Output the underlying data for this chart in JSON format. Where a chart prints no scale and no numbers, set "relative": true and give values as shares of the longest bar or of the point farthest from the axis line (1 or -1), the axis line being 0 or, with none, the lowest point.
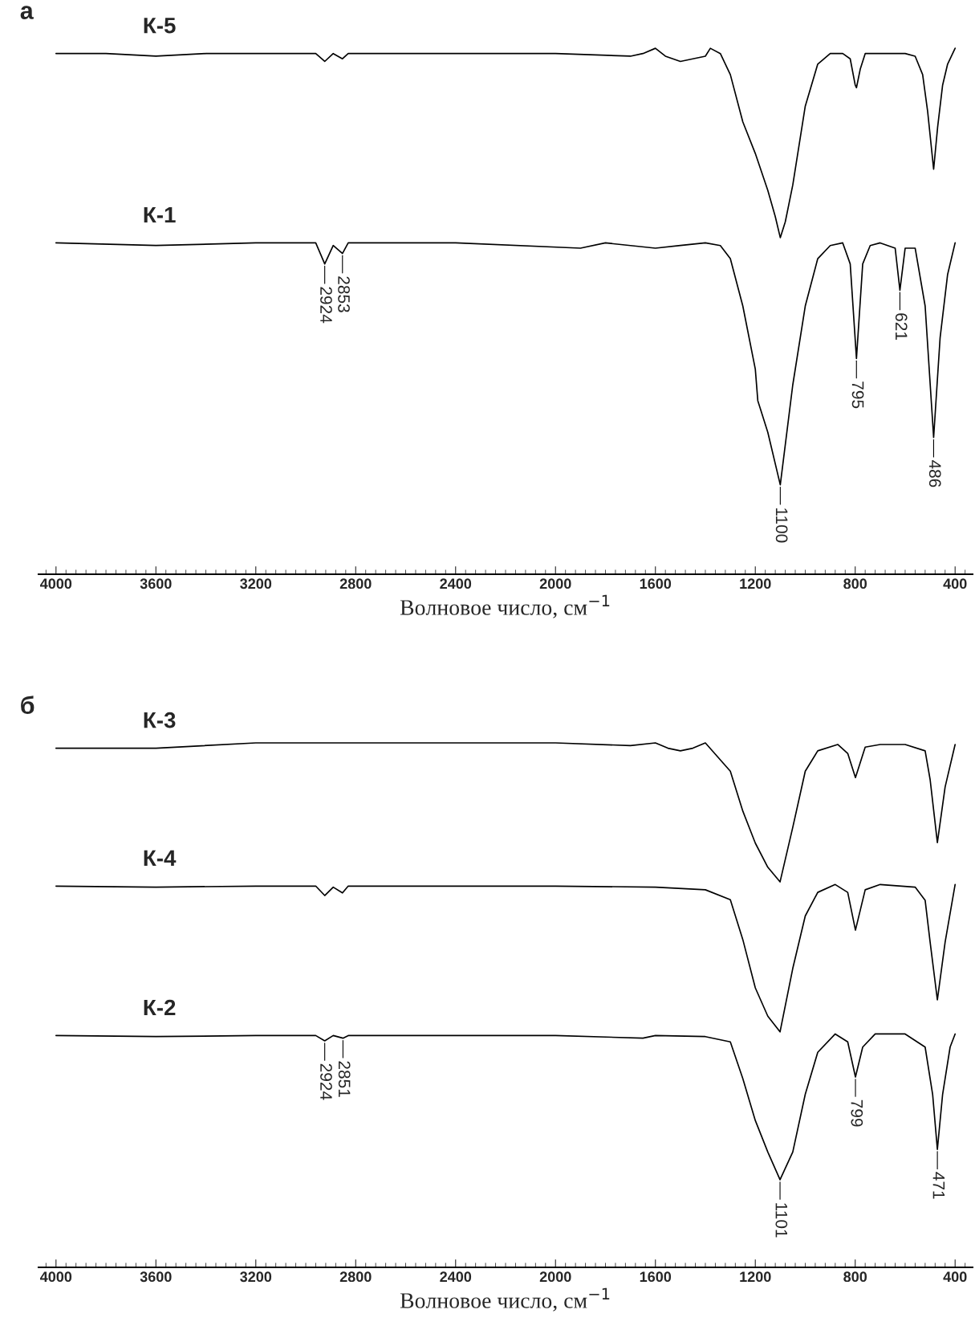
{
  "chart_data": [
    {
      "type": "line",
      "title": "а",
      "xlabel": "Волновое число, см$^{−1}$",
      "relative": true,
      "legend": false,
      "grid": false,
      "xlim": [
        4070,
        330
      ],
      "xticks": [
        4000,
        3600,
        3200,
        2800,
        2400,
        2000,
        1600,
        1200,
        800,
        400
      ],
      "series": [
        {
          "name": "К-5",
          "color": "#000000",
          "x": [
            4000,
            3800,
            3600,
            3400,
            3000,
            2960,
            2924,
            2890,
            2853,
            2830,
            2400,
            2000,
            1700,
            1650,
            1600,
            1560,
            1500,
            1450,
            1400,
            1380,
            1340,
            1300,
            1250,
            1200,
            1150,
            1120,
            1100,
            1080,
            1050,
            1000,
            950,
            900,
            850,
            820,
            800,
            795,
            780,
            760,
            700,
            600,
            560,
            530,
            510,
            486,
            470,
            450,
            430,
            400
          ],
          "values": [
            0.99,
            0.99,
            0.985,
            0.99,
            0.99,
            0.99,
            0.975,
            0.99,
            0.98,
            0.99,
            0.99,
            0.99,
            0.985,
            0.99,
            1.0,
            0.985,
            0.975,
            0.98,
            0.985,
            1.0,
            0.99,
            0.95,
            0.86,
            0.8,
            0.73,
            0.68,
            0.64,
            0.67,
            0.74,
            0.89,
            0.97,
            0.99,
            0.99,
            0.98,
            0.93,
            0.925,
            0.96,
            0.99,
            0.99,
            0.99,
            0.985,
            0.95,
            0.88,
            0.77,
            0.85,
            0.93,
            0.97,
            1.0
          ]
        },
        {
          "name": "К-1",
          "color": "#000000",
          "x": [
            4000,
            3600,
            3200,
            2960,
            2924,
            2890,
            2853,
            2830,
            2400,
            1900,
            1800,
            1600,
            1500,
            1400,
            1340,
            1300,
            1250,
            1200,
            1190,
            1150,
            1100,
            1050,
            1000,
            950,
            900,
            850,
            820,
            795,
            770,
            740,
            700,
            640,
            621,
            600,
            560,
            520,
            486,
            460,
            430,
            400
          ],
          "values": [
            0.63,
            0.625,
            0.63,
            0.63,
            0.59,
            0.625,
            0.61,
            0.63,
            0.63,
            0.62,
            0.63,
            0.62,
            0.625,
            0.63,
            0.625,
            0.6,
            0.51,
            0.39,
            0.33,
            0.27,
            0.17,
            0.36,
            0.51,
            0.6,
            0.625,
            0.63,
            0.59,
            0.41,
            0.59,
            0.625,
            0.63,
            0.62,
            0.54,
            0.62,
            0.62,
            0.51,
            0.26,
            0.45,
            0.57,
            0.63
          ]
        }
      ],
      "annotations": [
        {
          "text": "2924",
          "x": 2924,
          "y": 0.59
        },
        {
          "text": "2853",
          "x": 2853,
          "y": 0.61
        },
        {
          "text": "1100",
          "x": 1100,
          "y": 0.17
        },
        {
          "text": "795",
          "x": 795,
          "y": 0.41
        },
        {
          "text": "621",
          "x": 621,
          "y": 0.54
        },
        {
          "text": "486",
          "x": 486,
          "y": 0.26
        }
      ]
    },
    {
      "type": "line",
      "title": "б",
      "xlabel": "Волновое число, см$^{−1}$",
      "relative": true,
      "legend": false,
      "grid": false,
      "xlim": [
        4070,
        330
      ],
      "xticks": [
        4000,
        3600,
        3200,
        2800,
        2400,
        2000,
        1600,
        1200,
        800,
        400
      ],
      "series": [
        {
          "name": "К-3",
          "color": "#000000",
          "x": [
            4000,
            3600,
            3200,
            2800,
            2400,
            2000,
            1700,
            1600,
            1550,
            1500,
            1450,
            1400,
            1300,
            1250,
            1200,
            1150,
            1101,
            1050,
            1000,
            950,
            870,
            830,
            799,
            760,
            700,
            600,
            520,
            500,
            471,
            440,
            400
          ],
          "values": [
            0.99,
            0.99,
            1.0,
            1.0,
            1.0,
            1.0,
            0.995,
            1.0,
            0.99,
            0.985,
            0.99,
            1.0,
            0.946,
            0.87,
            0.809,
            0.763,
            0.735,
            0.839,
            0.946,
            0.985,
            0.997,
            0.98,
            0.934,
            0.992,
            0.997,
            0.997,
            0.985,
            0.93,
            0.81,
            0.916,
            0.997
          ]
        },
        {
          "name": "К-4",
          "color": "#000000",
          "x": [
            4000,
            3600,
            3200,
            2960,
            2924,
            2890,
            2853,
            2830,
            2400,
            2000,
            1600,
            1400,
            1300,
            1250,
            1200,
            1150,
            1101,
            1050,
            1000,
            950,
            880,
            830,
            799,
            760,
            700,
            560,
            520,
            500,
            471,
            440,
            400
          ],
          "values": [
            0.727,
            0.725,
            0.727,
            0.727,
            0.709,
            0.725,
            0.714,
            0.727,
            0.727,
            0.727,
            0.725,
            0.72,
            0.701,
            0.625,
            0.533,
            0.479,
            0.449,
            0.57,
            0.67,
            0.715,
            0.73,
            0.715,
            0.643,
            0.72,
            0.73,
            0.725,
            0.7,
            0.62,
            0.51,
            0.62,
            0.73
          ]
        },
        {
          "name": "К-2",
          "color": "#000000",
          "x": [
            4000,
            3600,
            3200,
            2960,
            2924,
            2890,
            2851,
            2830,
            2400,
            2000,
            1650,
            1600,
            1400,
            1300,
            1250,
            1200,
            1150,
            1101,
            1050,
            1000,
            950,
            880,
            830,
            799,
            770,
            720,
            600,
            520,
            490,
            471,
            450,
            420,
            400
          ],
          "values": [
            0.442,
            0.44,
            0.442,
            0.442,
            0.432,
            0.442,
            0.437,
            0.442,
            0.442,
            0.442,
            0.437,
            0.442,
            0.44,
            0.43,
            0.36,
            0.28,
            0.22,
            0.167,
            0.22,
            0.33,
            0.41,
            0.445,
            0.43,
            0.363,
            0.42,
            0.445,
            0.445,
            0.42,
            0.33,
            0.225,
            0.33,
            0.42,
            0.445
          ]
        }
      ],
      "annotations": [
        {
          "text": "2924",
          "x": 2924,
          "y": 0.432
        },
        {
          "text": "2851",
          "x": 2851,
          "y": 0.437
        },
        {
          "text": "1101",
          "x": 1101,
          "y": 0.167
        },
        {
          "text": "799",
          "x": 799,
          "y": 0.363
        },
        {
          "text": "471",
          "x": 471,
          "y": 0.225
        }
      ]
    }
  ]
}
